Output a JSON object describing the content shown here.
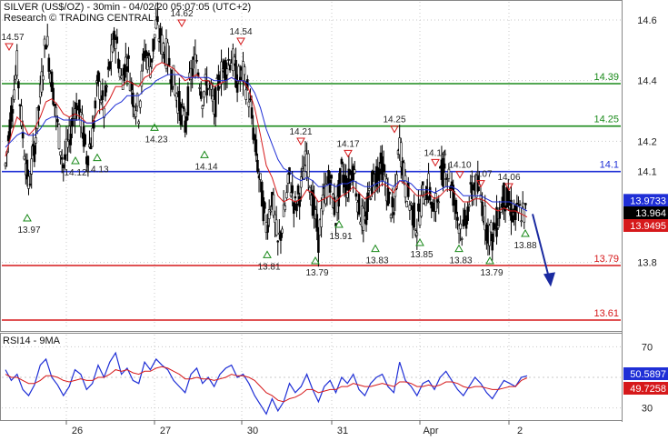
{
  "header": {
    "title": "SILVER (US$/OZ) - 30min - 04/02/20 05:07:05 (UTC+2)",
    "source": "Research © TRADING CENTRAL"
  },
  "rsi_panel": {
    "title": "RSI14 - 9MA",
    "ticks": [
      "70",
      "30"
    ],
    "rsi_label": "50.5897",
    "ma_label": "49.7258"
  },
  "price_panel": {
    "ticks": [
      "14.6",
      "14.4",
      "14.2",
      "14.1",
      "13.8"
    ],
    "last_close": "13.9733",
    "last_value": "13.964",
    "ma_value": "13.9495"
  },
  "x_axis": {
    "labels": [
      "26",
      "27",
      "30",
      "31",
      "Apr",
      "2"
    ]
  },
  "chart_data": {
    "type": "candlestick",
    "title": "SILVER (US$/OZ) - 30min - 04/02/20 05:07:05 (UTC+2)",
    "y_ticks": [
      14.6,
      14.4,
      14.2,
      14.1,
      13.8
    ],
    "ylim": [
      13.58,
      14.66
    ],
    "x_ticks": [
      "26",
      "27",
      "30",
      "31",
      "Apr",
      "2"
    ],
    "levels": [
      {
        "label": "14.39",
        "value": 14.39,
        "color": "#1a8a1a"
      },
      {
        "label": "14.25",
        "value": 14.25,
        "color": "#1a8a1a"
      },
      {
        "label": "14.1",
        "value": 14.1,
        "color": "#1f2fd6"
      },
      {
        "label": "13.79",
        "value": 13.79,
        "color": "#d6191b"
      },
      {
        "label": "13.61",
        "value": 13.61,
        "color": "#d6191b"
      }
    ],
    "swing_highs": [
      {
        "label": "14.57",
        "value": 14.57
      },
      {
        "label": "14.62",
        "value": 14.62
      },
      {
        "label": "14.54",
        "value": 14.54
      },
      {
        "label": "14.21",
        "value": 14.21
      },
      {
        "label": "14.17",
        "value": 14.17
      },
      {
        "label": "14.25",
        "value": 14.25
      },
      {
        "label": "14.14",
        "value": 14.14
      },
      {
        "label": "14.10",
        "value": 14.1
      },
      {
        "label": "14.07",
        "value": 14.07
      },
      {
        "label": "14.06",
        "value": 14.06
      }
    ],
    "swing_lows": [
      {
        "label": "13.97",
        "value": 13.97
      },
      {
        "label": "14.12",
        "value": 14.12
      },
      {
        "label": "14.13",
        "value": 14.13
      },
      {
        "label": "14.23",
        "value": 14.23
      },
      {
        "label": "14.14",
        "value": 14.14
      },
      {
        "label": "13.81",
        "value": 13.81
      },
      {
        "label": "13.79",
        "value": 13.79
      },
      {
        "label": "13.91",
        "value": 13.91
      },
      {
        "label": "13.83",
        "value": 13.83
      },
      {
        "label": "13.85",
        "value": 13.85
      },
      {
        "label": "13.83",
        "value": 13.83
      },
      {
        "label": "13.79",
        "value": 13.79
      },
      {
        "label": "13.88",
        "value": 13.88
      }
    ],
    "close_path": [
      14.12,
      14.3,
      14.45,
      14.22,
      14.05,
      14.18,
      14.35,
      14.55,
      14.4,
      14.25,
      14.12,
      14.2,
      14.32,
      14.28,
      14.15,
      14.22,
      14.4,
      14.3,
      14.45,
      14.55,
      14.4,
      14.48,
      14.35,
      14.3,
      14.5,
      14.45,
      14.58,
      14.52,
      14.48,
      14.4,
      14.32,
      14.25,
      14.42,
      14.47,
      14.35,
      14.4,
      14.3,
      14.42,
      14.45,
      14.48,
      14.4,
      14.42,
      14.35,
      14.2,
      14.05,
      13.92,
      14.02,
      13.85,
      13.95,
      14.08,
      13.98,
      14.05,
      14.15,
      14.0,
      13.88,
      14.02,
      14.08,
      13.95,
      14.1,
      14.05,
      14.12,
      13.98,
      13.92,
      14.05,
      14.1,
      14.12,
      14.02,
      13.95,
      14.2,
      14.05,
      13.98,
      13.92,
      14.02,
      14.05,
      13.95,
      14.08,
      14.12,
      14.05,
      13.95,
      13.9,
      14.0,
      14.06,
      14.02,
      13.92,
      13.88,
      13.95,
      14.02,
      13.98,
      13.95,
      13.97,
      13.96
    ],
    "sma_path": [
      14.15,
      14.22,
      14.28,
      14.26,
      14.22,
      14.24,
      14.28,
      14.33,
      14.34,
      14.32,
      14.29,
      14.28,
      14.29,
      14.28,
      14.26,
      14.26,
      14.3,
      14.31,
      14.34,
      14.38,
      14.38,
      14.4,
      14.39,
      14.38,
      14.41,
      14.42,
      14.45,
      14.46,
      14.45,
      14.44,
      14.42,
      14.4,
      14.41,
      14.42,
      14.4,
      14.4,
      14.38,
      14.39,
      14.4,
      14.41,
      14.4,
      14.4,
      14.37,
      14.31,
      14.22,
      14.12,
      14.08,
      14.02,
      14.0,
      14.01,
      14.0,
      14.01,
      14.04,
      14.03,
      14.0,
      14.01,
      14.02,
      14.0,
      14.02,
      14.03,
      14.05,
      14.03,
      14.01,
      14.02,
      14.04,
      14.06,
      14.05,
      14.03,
      14.07,
      14.06,
      14.04,
      14.02,
      14.02,
      14.03,
      14.01,
      14.02,
      14.04,
      14.04,
      14.02,
      14.0,
      14.0,
      14.01,
      14.01,
      14.0,
      13.98,
      13.97,
      13.98,
      13.97,
      13.97,
      13.96,
      13.95
    ],
    "ema_path": [
      14.18,
      14.2,
      14.22,
      14.23,
      14.22,
      14.22,
      14.24,
      14.27,
      14.28,
      14.28,
      14.27,
      14.27,
      14.27,
      14.27,
      14.26,
      14.26,
      14.27,
      14.28,
      14.3,
      14.32,
      14.33,
      14.35,
      14.35,
      14.35,
      14.37,
      14.38,
      14.4,
      14.41,
      14.42,
      14.42,
      14.42,
      14.41,
      14.41,
      14.41,
      14.41,
      14.41,
      14.4,
      14.4,
      14.4,
      14.41,
      14.4,
      14.4,
      14.39,
      14.36,
      14.31,
      14.24,
      14.19,
      14.14,
      14.11,
      14.1,
      14.08,
      14.07,
      14.08,
      14.07,
      14.05,
      14.05,
      14.06,
      14.05,
      14.06,
      14.06,
      14.07,
      14.06,
      14.05,
      14.05,
      14.06,
      14.07,
      14.06,
      14.05,
      14.07,
      14.07,
      14.06,
      14.04,
      14.04,
      14.04,
      14.03,
      14.04,
      14.05,
      14.05,
      14.04,
      14.02,
      14.02,
      14.02,
      14.02,
      14.01,
      14.0,
      14.0,
      14.0,
      14.0,
      13.99,
      13.98,
      13.97
    ],
    "projection": {
      "from": 13.96,
      "to": 13.72,
      "direction": "down"
    },
    "rsi": {
      "ylim": [
        22,
        78
      ],
      "levels": [
        70,
        30
      ],
      "rsi_path": [
        55,
        48,
        52,
        42,
        38,
        45,
        58,
        62,
        50,
        45,
        38,
        44,
        55,
        52,
        42,
        46,
        58,
        50,
        60,
        66,
        52,
        56,
        48,
        46,
        60,
        55,
        62,
        58,
        55,
        48,
        44,
        40,
        52,
        56,
        46,
        50,
        44,
        52,
        56,
        58,
        50,
        52,
        46,
        38,
        32,
        26,
        36,
        28,
        34,
        46,
        40,
        44,
        52,
        42,
        34,
        44,
        48,
        40,
        50,
        46,
        52,
        42,
        38,
        46,
        50,
        52,
        44,
        40,
        60,
        48,
        44,
        38,
        46,
        48,
        42,
        50,
        54,
        48,
        42,
        38,
        44,
        50,
        46,
        40,
        36,
        42,
        48,
        46,
        44,
        50,
        51
      ],
      "ma_path": [
        52,
        50,
        50,
        48,
        46,
        46,
        48,
        51,
        51,
        50,
        48,
        47,
        48,
        49,
        48,
        48,
        50,
        50,
        52,
        55,
        54,
        55,
        53,
        52,
        54,
        54,
        56,
        57,
        56,
        54,
        52,
        49,
        49,
        50,
        49,
        49,
        48,
        49,
        50,
        52,
        51,
        51,
        50,
        48,
        44,
        40,
        38,
        35,
        34,
        36,
        37,
        39,
        42,
        42,
        40,
        41,
        42,
        42,
        44,
        44,
        46,
        45,
        44,
        44,
        45,
        46,
        45,
        44,
        47,
        47,
        46,
        44,
        44,
        45,
        44,
        45,
        47,
        47,
        46,
        44,
        43,
        44,
        44,
        43,
        42,
        42,
        43,
        44,
        44,
        48,
        49.7
      ]
    }
  }
}
